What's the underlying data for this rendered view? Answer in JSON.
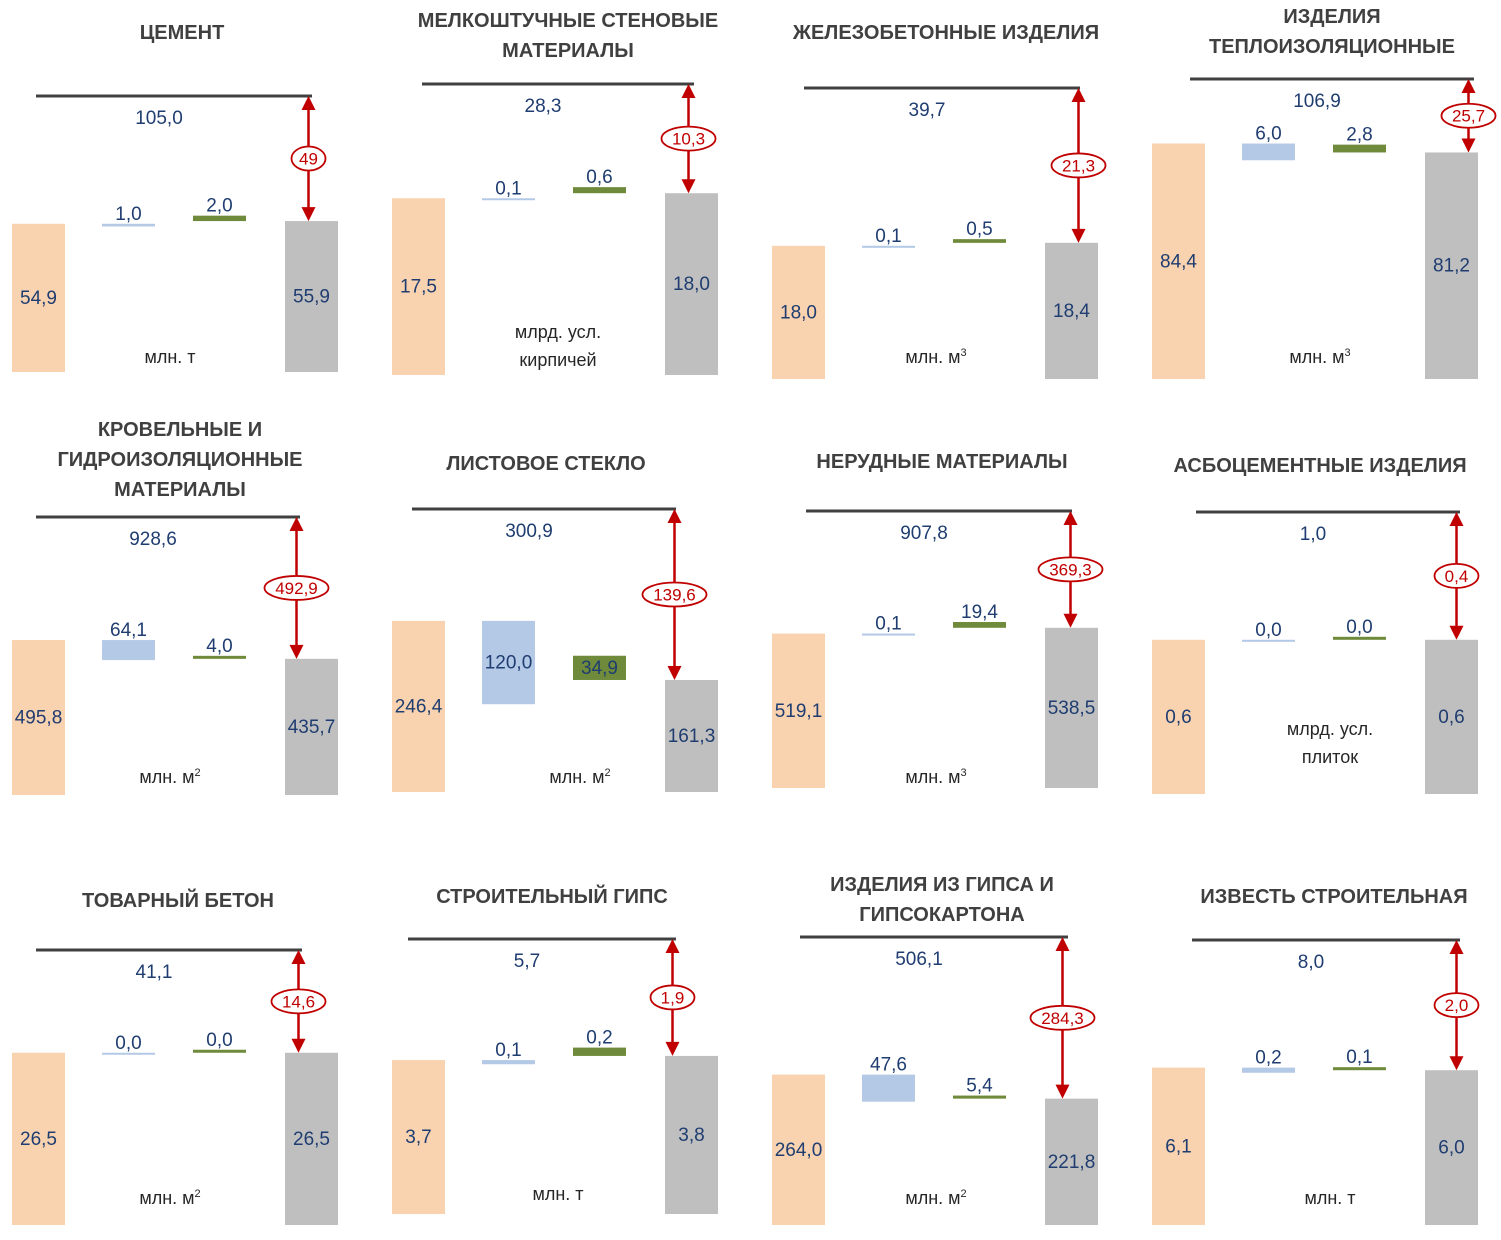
{
  "colors": {
    "produced": "#f9d2b0",
    "import": "#b4c9e6",
    "export": "#6e8a3a",
    "consumption": "#bfbfbf",
    "capacity_line": "#404040",
    "value_text": "#1f3d70",
    "gap": "#c00000"
  },
  "chart_data": [
    {
      "type": "bar",
      "title": [
        "ЦЕМЕНТ"
      ],
      "unit": [
        "млн. т"
      ],
      "unit_sup": "",
      "capacity": "105,0",
      "produced": "54,9",
      "import": "1,0",
      "export": "2,0",
      "consumption": "55,9",
      "gap": "49"
    },
    {
      "type": "bar",
      "title": [
        "МЕЛКОШТУЧНЫЕ СТЕНОВЫЕ",
        "МАТЕРИАЛЫ"
      ],
      "unit": [
        "млрд. усл.",
        "кирпичей"
      ],
      "unit_sup": "",
      "capacity": "28,3",
      "produced": "17,5",
      "import": "0,1",
      "export": "0,6",
      "consumption": "18,0",
      "gap": "10,3"
    },
    {
      "type": "bar",
      "title": [
        "ЖЕЛЕЗОБЕТОННЫЕ ИЗДЕЛИЯ"
      ],
      "unit": [
        "млн. м"
      ],
      "unit_sup": "3",
      "capacity": "39,7",
      "produced": "18,0",
      "import": "0,1",
      "export": "0,5",
      "consumption": "18,4",
      "gap": "21,3"
    },
    {
      "type": "bar",
      "title": [
        "ИЗДЕЛИЯ",
        "ТЕПЛОИЗОЛЯЦИОННЫЕ"
      ],
      "unit": [
        "млн. м"
      ],
      "unit_sup": "3",
      "capacity": "106,9",
      "produced": "84,4",
      "import": "6,0",
      "export": "2,8",
      "consumption": "81,2",
      "gap": "25,7"
    },
    {
      "type": "bar",
      "title": [
        "КРОВЕЛЬНЫЕ И",
        "ГИДРОИЗОЛЯЦИОННЫЕ",
        "МАТЕРИАЛЫ"
      ],
      "unit": [
        "млн. м"
      ],
      "unit_sup": "2",
      "capacity": "928,6",
      "produced": "495,8",
      "import": "64,1",
      "export": "4,0",
      "consumption": "435,7",
      "gap": "492,9"
    },
    {
      "type": "bar",
      "title": [
        "ЛИСТОВОЕ СТЕКЛО"
      ],
      "unit": [
        "млн. м"
      ],
      "unit_sup": "2",
      "capacity": "300,9",
      "produced": "246,4",
      "import": "120,0",
      "export": "34,9",
      "consumption": "161,3",
      "gap": "139,6"
    },
    {
      "type": "bar",
      "title": [
        "НЕРУДНЫЕ МАТЕРИАЛЫ"
      ],
      "unit": [
        "млн. м"
      ],
      "unit_sup": "3",
      "capacity": "907,8",
      "produced": "519,1",
      "import": "0,1",
      "export": "19,4",
      "consumption": "538,5",
      "gap": "369,3"
    },
    {
      "type": "bar",
      "title": [
        "АСБОЦЕМЕНТНЫЕ ИЗДЕЛИЯ"
      ],
      "unit": [
        "млрд. усл.",
        "плиток"
      ],
      "unit_sup": "",
      "capacity": "1,0",
      "produced": "0,6",
      "import": "0,0",
      "export": "0,0",
      "consumption": "0,6",
      "gap": "0,4"
    },
    {
      "type": "bar",
      "title": [
        "ТОВАРНЫЙ БЕТОН"
      ],
      "unit": [
        "млн. м"
      ],
      "unit_sup": "2",
      "capacity": "41,1",
      "produced": "26,5",
      "import": "0,0",
      "export": "0,0",
      "consumption": "26,5",
      "gap": "14,6"
    },
    {
      "type": "bar",
      "title": [
        "СТРОИТЕЛЬНЫЙ ГИПС"
      ],
      "unit": [
        "млн. т"
      ],
      "unit_sup": "",
      "capacity": "5,7",
      "produced": "3,7",
      "import": "0,1",
      "export": "0,2",
      "consumption": "3,8",
      "gap": "1,9"
    },
    {
      "type": "bar",
      "title": [
        "ИЗДЕЛИЯ ИЗ ГИПСА И",
        "ГИПСОКАРТОНА"
      ],
      "unit": [
        "млн. м"
      ],
      "unit_sup": "2",
      "capacity": "506,1",
      "produced": "264,0",
      "import": "47,6",
      "export": "5,4",
      "consumption": "221,8",
      "gap": "284,3"
    },
    {
      "type": "bar",
      "title": [
        "ИЗВЕСТЬ СТРОИТЕЛЬНАЯ"
      ],
      "unit": [
        "млн. т"
      ],
      "unit_sup": "",
      "capacity": "8,0",
      "produced": "6,1",
      "import": "0,2",
      "export": "0,1",
      "consumption": "6,0",
      "gap": "2,0"
    }
  ]
}
